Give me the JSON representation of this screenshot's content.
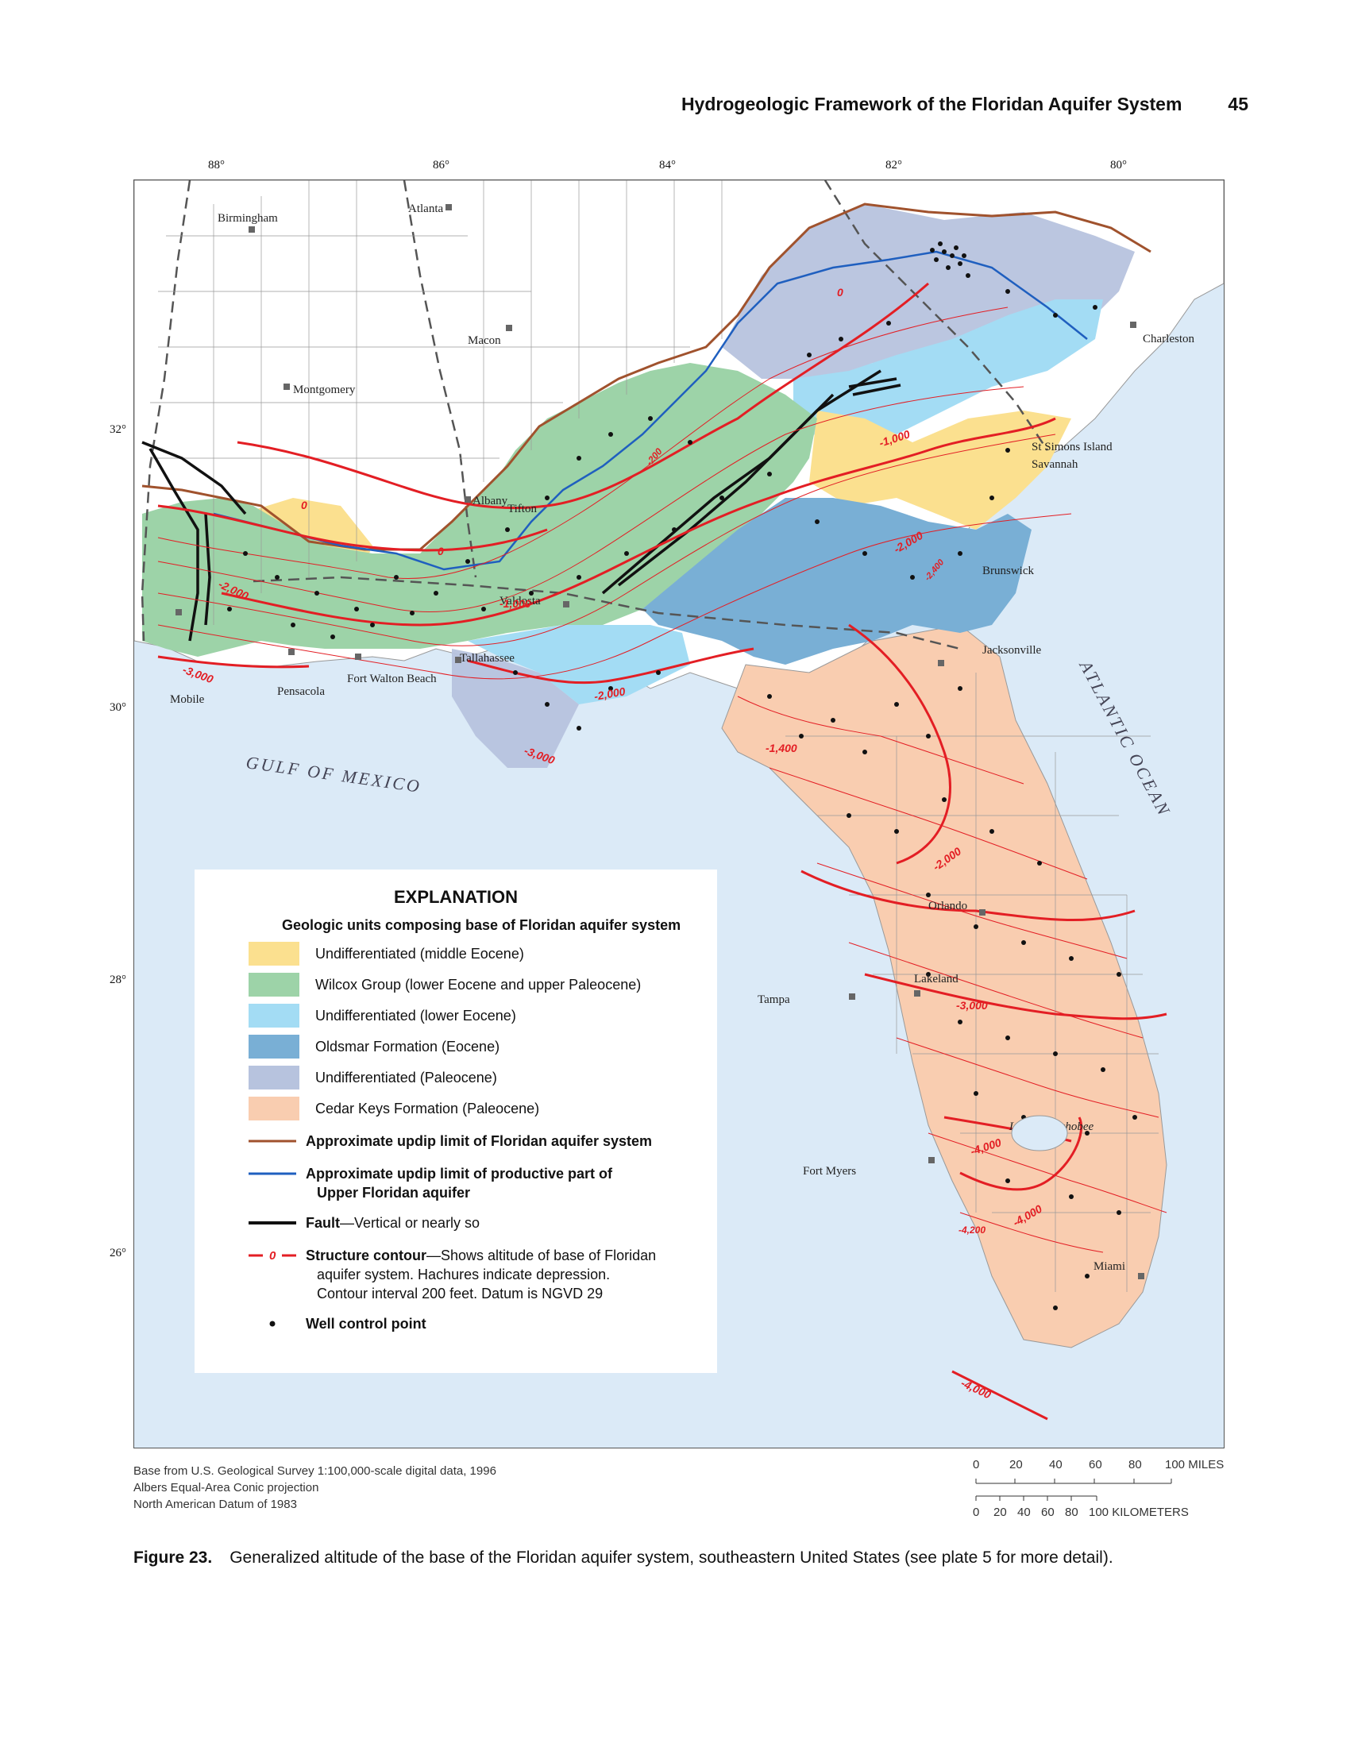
{
  "header": {
    "title": "Hydrogeologic Framework of the Floridan Aquifer System",
    "page_number": "45"
  },
  "map": {
    "longitude_labels": [
      "88°",
      "86°",
      "84°",
      "82°",
      "80°"
    ],
    "latitude_labels": [
      "32°",
      "30°",
      "28°",
      "26°"
    ],
    "places": [
      "Birmingham",
      "Atlanta",
      "Macon",
      "Montgomery",
      "Charleston",
      "Albany",
      "Tifton",
      "St Simons Island",
      "Savannah",
      "Brunswick",
      "Valdosta",
      "Tallahassee",
      "Jacksonville",
      "Mobile",
      "Pensacola",
      "Fort Walton Beach",
      "Orlando",
      "Lakeland",
      "Tampa",
      "Fort Myers",
      "Miami",
      "Lake Okeechobee"
    ],
    "water_labels": [
      "GULF OF MEXICO",
      "ATLANTIC OCEAN"
    ],
    "contour_labels": [
      "0",
      "0",
      "0",
      "-200",
      "-1,000",
      "-1,000",
      "-2,000",
      "-2,000",
      "-2,000",
      "-2,400",
      "-3,000",
      "-3,000",
      "-1,400",
      "-2,000",
      "-3,000",
      "-4,000",
      "-4,000",
      "-4,200",
      "-4,000"
    ]
  },
  "legend": {
    "title": "EXPLANATION",
    "subhead": "Geologic units composing base of Floridan aquifer system",
    "units": [
      {
        "label": "Undifferentiated (middle Eocene)",
        "color": "#fbe08f"
      },
      {
        "label": "Wilcox Group (lower Eocene and upper Paleocene)",
        "color": "#9dd3a8"
      },
      {
        "label": "Undifferentiated (lower Eocene)",
        "color": "#a3dcf4"
      },
      {
        "label": "Oldsmar Formation (Eocene)",
        "color": "#79afd5"
      },
      {
        "label": "Undifferentiated (Paleocene)",
        "color": "#b7c3de"
      },
      {
        "label": "Cedar Keys Formation (Paleocene)",
        "color": "#f9cdb0"
      }
    ],
    "updip_limit": "Approximate updip limit of Floridan aquifer system",
    "productive_limit_1": "Approximate updip limit of productive part of",
    "productive_limit_2": "Upper Floridan aquifer",
    "fault_bold": "Fault",
    "fault_rest": "—Vertical or nearly so",
    "contour_symbol": "0",
    "contour_bold": "Structure contour",
    "contour_rest": "—Shows altitude of base of Floridan",
    "contour_line2": "aquifer system. Hachures indicate depression.",
    "contour_line3": "Contour interval 200 feet. Datum is NGVD 29",
    "well": "Well control point",
    "colors": {
      "updip": "#a0522d",
      "productive": "#1f5fbf",
      "fault": "#111111",
      "contour": "#e31e24"
    }
  },
  "credits": [
    "Base from U.S. Geological Survey 1:100,000-scale digital data, 1996",
    "Albers Equal-Area Conic projection",
    "North American Datum of 1983"
  ],
  "scale": {
    "miles": [
      "0",
      "20",
      "40",
      "60",
      "80",
      "100 MILES"
    ],
    "km": [
      "0",
      "20",
      "40",
      "60",
      "80",
      "100 KILOMETERS"
    ]
  },
  "caption": {
    "label": "Figure 23.",
    "text": "Generalized altitude of the base of the Floridan aquifer system, southeastern United States (see plate 5 for more detail)."
  }
}
